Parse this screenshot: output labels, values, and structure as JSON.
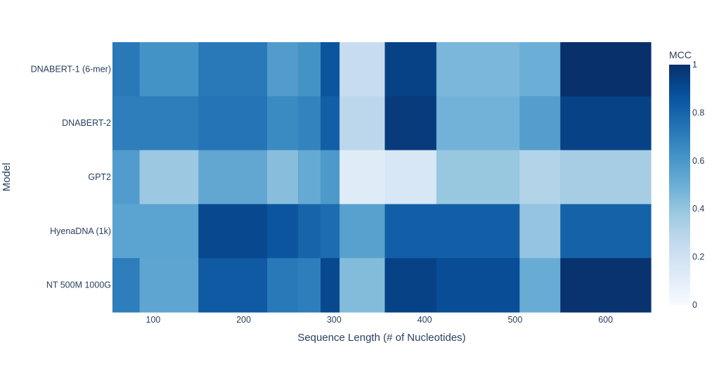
{
  "chart_data": {
    "type": "heatmap",
    "xlabel": "Sequence Length (# of Nucleotides)",
    "ylabel": "Model",
    "colorbar_title": "MCC",
    "colorscale": "Blues",
    "zlim": [
      0,
      1
    ],
    "xlim": [
      55,
      650
    ],
    "x_tick_values": [
      100,
      200,
      300,
      400,
      500,
      600
    ],
    "colorbar_tick_values": [
      0,
      0.2,
      0.4,
      0.6,
      0.8,
      1
    ],
    "colorbar_tick_labels": [
      "0",
      "0.2",
      "0.4",
      "0.6",
      "0.8",
      "1"
    ],
    "x_bin_edges": [
      55,
      85,
      150,
      226,
      260,
      285,
      306,
      356,
      413,
      505,
      550,
      650
    ],
    "models": [
      "DNABERT-1 (6-mer)",
      "DNABERT-2",
      "GPT2",
      "HyenaDNA (1k)",
      "NT 500M 1000G"
    ],
    "z": [
      [
        0.72,
        0.62,
        0.72,
        0.58,
        0.62,
        0.86,
        0.24,
        0.93,
        0.46,
        0.5,
        1.0
      ],
      [
        0.7,
        0.7,
        0.74,
        0.65,
        0.68,
        0.82,
        0.28,
        0.96,
        0.48,
        0.57,
        0.93
      ],
      [
        0.58,
        0.38,
        0.53,
        0.43,
        0.52,
        0.59,
        0.12,
        0.16,
        0.39,
        0.31,
        0.35
      ],
      [
        0.55,
        0.55,
        0.91,
        0.86,
        0.8,
        0.77,
        0.56,
        0.82,
        0.82,
        0.4,
        0.81
      ],
      [
        0.7,
        0.54,
        0.84,
        0.72,
        0.7,
        0.91,
        0.44,
        0.93,
        0.89,
        0.51,
        0.99
      ]
    ]
  }
}
